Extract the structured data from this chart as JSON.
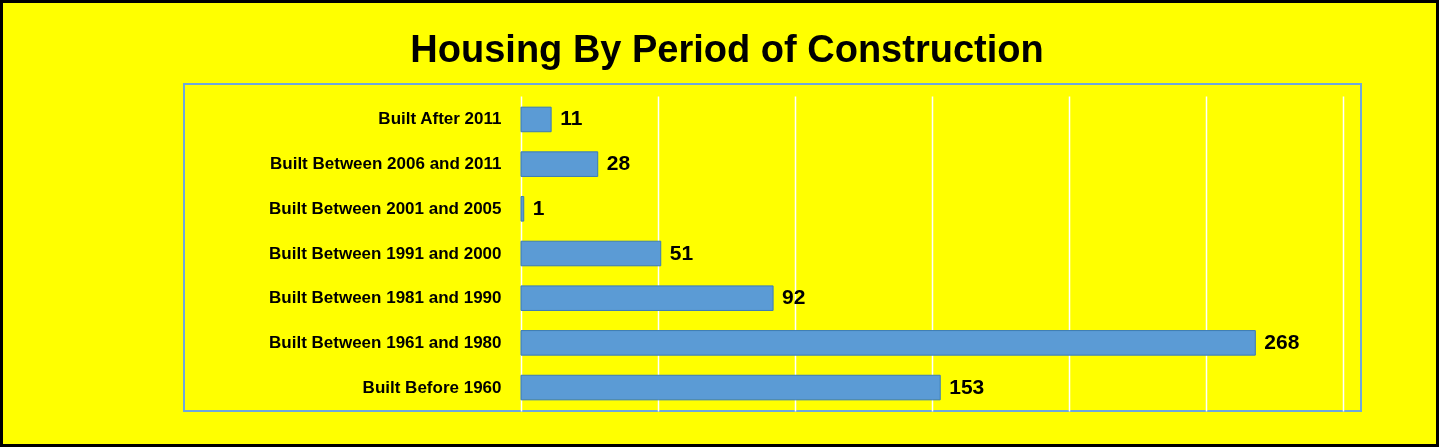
{
  "chart_data": {
    "type": "bar",
    "orientation": "horizontal",
    "title": "Housing By Period of Construction",
    "categories": [
      "Built After 2011",
      "Built Between 2006 and 2011",
      "Built Between 2001 and 2005",
      "Built Between 1991 and 2000",
      "Built Between 1981 and 1990",
      "Built Between 1961 and 1980",
      "Built Before 1960"
    ],
    "values": [
      11,
      28,
      1,
      51,
      92,
      268,
      153
    ],
    "color": "#5b9bd5",
    "xlim": [
      0,
      300
    ],
    "xticks": [
      {
        "value": 0,
        "label": null
      },
      {
        "value": 50,
        "label": null
      },
      {
        "value": 100,
        "label": null
      },
      {
        "value": 150,
        "label": null
      },
      {
        "value": 200,
        "label": null
      },
      {
        "value": 250,
        "label": null
      },
      {
        "value": 300,
        "label": null
      }
    ],
    "grid": "x",
    "tick_labels": "y",
    "data_labels": true
  }
}
